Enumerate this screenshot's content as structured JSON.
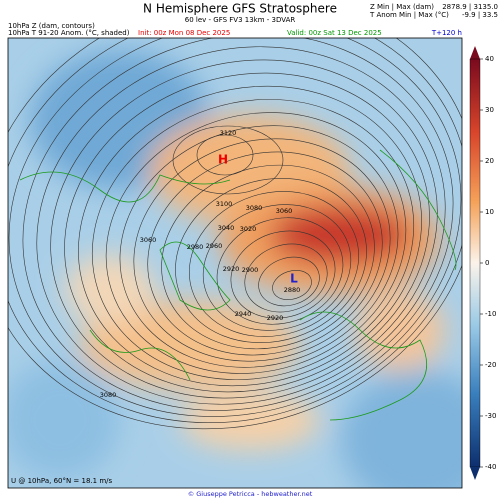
{
  "header": {
    "title": "N Hemisphere GFS Stratosphere",
    "subtitle": "60 lev - GFS FV3 13km - 3DVAR",
    "z_label": "Z Min | Max (dam)",
    "z_values": "2878.9 | 3135.0",
    "t_label": "T Anom Min | Max (°C)",
    "t_values": "-9.9 | 33.5",
    "left_line1": "10hPa Z (dam, contours)",
    "left_line2": "10hPa T 91-20 Anom. (°C, shaded)",
    "init": "Init: 00z Mon 08 Dec 2025",
    "valid": "Valid: 00z Sat 13 Dec 2025",
    "lead": "T+120 h"
  },
  "map": {
    "high": "H",
    "low": "L",
    "contour_labels": [
      "3120",
      "3100",
      "3080",
      "3060",
      "3040",
      "3020",
      "3060",
      "2980",
      "2960",
      "2920",
      "2900",
      "2880",
      "2940",
      "2920",
      "3080"
    ],
    "footnote": "U @ 10hPa, 60°N = 18.1 m/s"
  },
  "colorbar": {
    "lim": [
      -40,
      40
    ],
    "ticks": [
      40,
      30,
      20,
      10,
      0,
      -10,
      -20,
      -30,
      -40
    ]
  },
  "footer": "© Giuseppe Petricca - hebweather.net"
}
